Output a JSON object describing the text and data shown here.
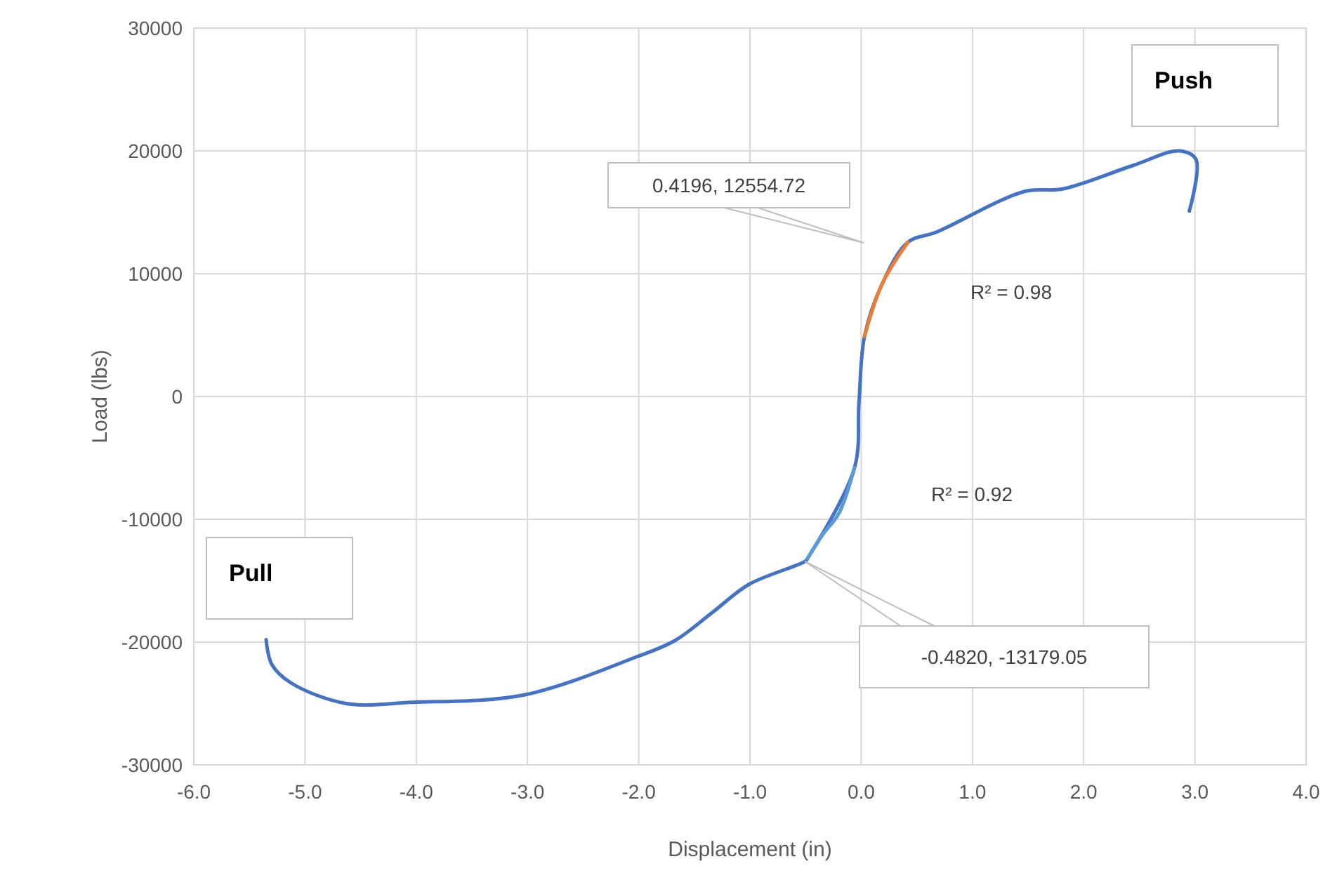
{
  "chart_data": {
    "type": "line",
    "xlabel": "Displacement (in)",
    "ylabel": "Load (lbs)",
    "xlim": [
      -6,
      4
    ],
    "xticks": [
      {
        "value": -6,
        "label": "-6.0"
      },
      {
        "value": -5,
        "label": "-5.0"
      },
      {
        "value": -4,
        "label": "-4.0"
      },
      {
        "value": -3,
        "label": "-3.0"
      },
      {
        "value": -2,
        "label": "-2.0"
      },
      {
        "value": -1,
        "label": "-1.0"
      },
      {
        "value": 0,
        "label": "0.0"
      },
      {
        "value": 1,
        "label": "1.0"
      },
      {
        "value": 2,
        "label": "2.0"
      },
      {
        "value": 3,
        "label": "3.0"
      },
      {
        "value": 4,
        "label": "4.0"
      }
    ],
    "ylim": [
      -30000,
      30000
    ],
    "yticks": [
      -30000,
      -20000,
      -10000,
      0,
      10000,
      20000,
      30000
    ],
    "grid": true,
    "marker": "none",
    "line_style": "solid",
    "legend": false,
    "series": [
      {
        "color": "#4472c4",
        "x": [
          -5.35,
          -5.3,
          -5.13,
          -4.63,
          -4.04,
          -3.03,
          -2.02,
          -1.68,
          -1.34,
          -1.01,
          -0.5,
          -0.482,
          -0.06,
          -0.02,
          0.03,
          0.19,
          0.4196,
          0.68,
          1.47,
          1.81,
          2.44,
          2.86,
          3.01,
          2.95
        ],
        "values": [
          -19800,
          -21800,
          -23300,
          -25000,
          -24900,
          -24300,
          -21200,
          -19900,
          -17600,
          -15300,
          -13400,
          -13179.05,
          -5800,
          -500,
          4900,
          9200,
          12554.72,
          13400,
          16700,
          16900,
          18800,
          20000,
          19300,
          15100
        ]
      },
      {
        "color": "#5b9bd5",
        "x": [
          -0.482,
          -0.35,
          -0.2,
          -0.06
        ],
        "values": [
          -13179.05,
          -11300,
          -9500,
          -5800
        ]
      },
      {
        "color": "#ed7d31",
        "x": [
          0.03,
          0.19,
          0.4196
        ],
        "values": [
          4900,
          9200,
          12554.72
        ]
      }
    ],
    "annotations": [
      "0.4196, 12554.72",
      "-0.4820, -13179.05",
      "R² = 0.98",
      "R² = 0.92",
      "Push",
      "Pull"
    ]
  }
}
